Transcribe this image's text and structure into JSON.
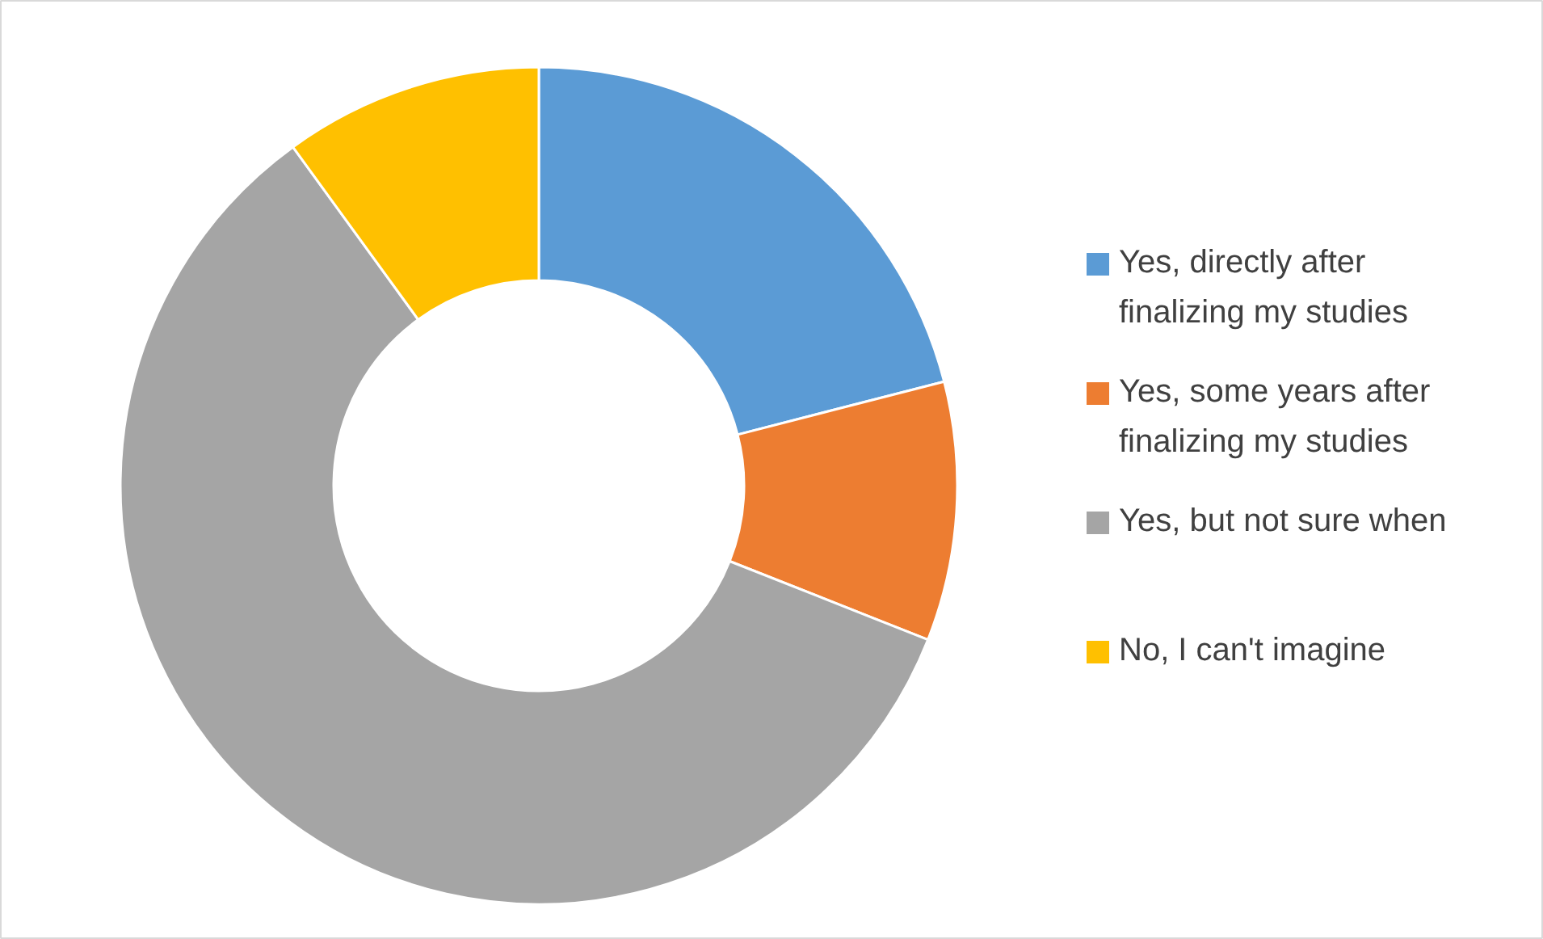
{
  "chart_data": {
    "type": "donut",
    "categories": [
      "Yes, directly after finalizing my studies",
      "Yes, some years after finalizing my studies",
      "Yes, but not sure when",
      "No, I can't imagine"
    ],
    "values": [
      21,
      10,
      59,
      10
    ],
    "colors": [
      "#5b9bd5",
      "#ed7d31",
      "#a5a5a5",
      "#ffc000"
    ],
    "legend": "right"
  }
}
